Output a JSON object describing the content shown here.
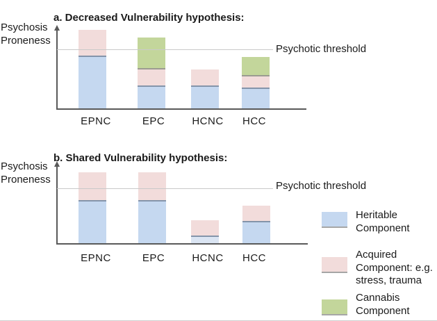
{
  "figure": {
    "y_axis_label": {
      "line1": "Psychosis",
      "line2": "Proneness"
    }
  },
  "icons": {
    "y_axis_arrow": "▲"
  },
  "colors": {
    "heritable": "#c5d8f0",
    "heritable_faded": "#dbe5f3",
    "acquired": "#f2dcdb",
    "cannabis": "#c3d69b",
    "divider_heritable": "#8494aa",
    "divider_acquired": "#9b9b91",
    "axis": "#595959",
    "threshold_line": "#c9c9c9",
    "swatch_border": "#a6a6a6",
    "text": "#1a1a1a"
  },
  "legend": {
    "items": [
      {
        "key": "heritable",
        "label": "Heritable\nComponent",
        "color": "#c5d8f0"
      },
      {
        "key": "acquired",
        "label": "Acquired\nComponent: e.g.\nstress, trauma",
        "color": "#f2dcdb"
      },
      {
        "key": "cannabis",
        "label": "Cannabis\nComponent",
        "color": "#c3d69b"
      }
    ]
  },
  "chart_data": [
    {
      "type": "bar",
      "stacked": true,
      "title": "a. Decreased Vulnerability hypothesis:",
      "ylabel": "Psychosis Proneness",
      "xlabel": "",
      "categories": [
        "EPNC",
        "EPC",
        "HCNC",
        "HCC"
      ],
      "units": "relative psychosis proneness (psychotic threshold = 1.0)",
      "ylim": [
        0,
        1.4
      ],
      "grid": false,
      "legend_position": "bottom-right",
      "threshold": {
        "label": "Psychotic threshold",
        "value": 1.0
      },
      "series": [
        {
          "name": "Heritable Component",
          "values": [
            0.91,
            0.41,
            0.41,
            0.37
          ]
        },
        {
          "name": "Acquired Component: e.g. stress, trauma",
          "values": [
            0.43,
            0.29,
            0.27,
            0.21
          ]
        },
        {
          "name": "Cannabis Component",
          "values": [
            0,
            0.51,
            0,
            0.3
          ]
        }
      ]
    },
    {
      "type": "bar",
      "stacked": true,
      "title": "b. Shared Vulnerability hypothesis:",
      "ylabel": "Psychosis Proneness",
      "xlabel": "",
      "categories": [
        "EPNC",
        "EPC",
        "HCNC",
        "HCC"
      ],
      "units": "relative psychosis proneness (psychotic threshold = 1.0)",
      "ylim": [
        0,
        1.35
      ],
      "grid": false,
      "legend_position": "bottom-right",
      "threshold": {
        "label": "Psychotic threshold",
        "value": 1.0
      },
      "series": [
        {
          "name": "Heritable Component",
          "values": [
            0.8,
            0.8,
            0.16,
            0.43
          ]
        },
        {
          "name": "Acquired Component: e.g. stress, trauma",
          "values": [
            0.5,
            0.5,
            0.28,
            0.28
          ]
        },
        {
          "name": "Cannabis Component",
          "values": [
            0,
            0,
            0,
            0
          ]
        }
      ],
      "faded_heritable_categories": [
        "HCNC"
      ]
    }
  ]
}
